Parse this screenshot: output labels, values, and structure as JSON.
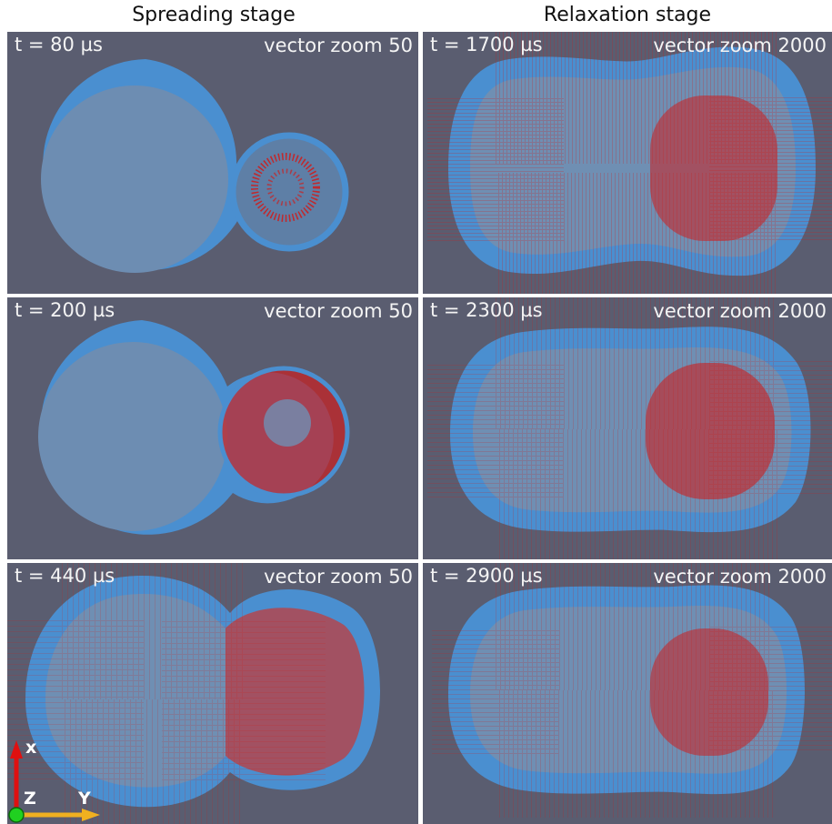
{
  "columns": {
    "left_title": "Spreading stage",
    "right_title": "Relaxation stage"
  },
  "panels": [
    {
      "time": "t = 80 µs",
      "zoom": "vector zoom 50"
    },
    {
      "time": "t = 1700 µs",
      "zoom": "vector zoom 2000"
    },
    {
      "time": "t = 200 µs",
      "zoom": "vector zoom 50"
    },
    {
      "time": "t = 2300 µs",
      "zoom": "vector zoom 2000"
    },
    {
      "time": "t = 440 µs",
      "zoom": "vector zoom 50"
    },
    {
      "time": "t = 2900 µs",
      "zoom": "vector zoom 2000"
    }
  ],
  "axes": {
    "x": "x",
    "y": "Y",
    "z": "Z"
  },
  "colors": {
    "background": "#5a5d70",
    "droplet_rim": "#4a8fd0",
    "droplet_film": "#6f8fb3",
    "velocity_vectors": "#cc1f1f",
    "axis_x": "#e01010",
    "axis_y": "#f0b020",
    "axis_z": "#20d020"
  }
}
